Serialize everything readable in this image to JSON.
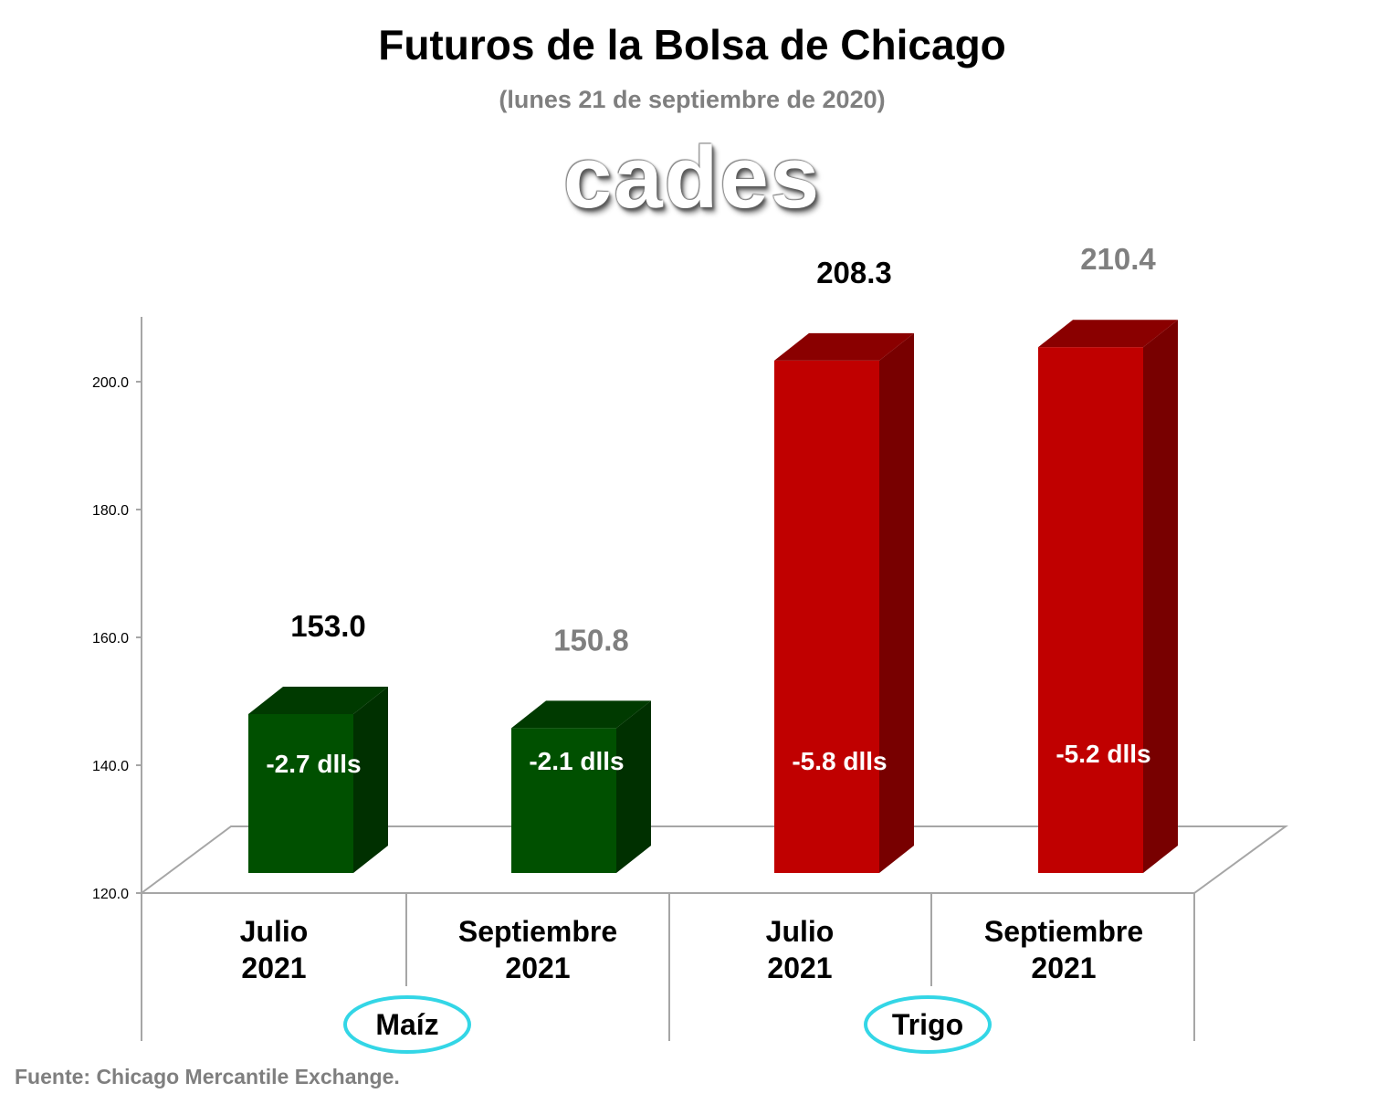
{
  "chart_data": {
    "type": "bar",
    "title": "Futuros de la Bolsa de Chicago",
    "subtitle": "(lunes 21 de septiembre de 2020)",
    "watermark": "cades",
    "source": "Fuente: Chicago Mercantile Exchange.",
    "ylim": [
      120,
      210
    ],
    "yticks": [
      "120.0",
      "140.0",
      "160.0",
      "180.0",
      "200.0"
    ],
    "grid": false,
    "bars": [
      {
        "line1": "Julio",
        "line2": "2021",
        "group": "Maíz",
        "value": 153.0,
        "value_label": "153.0",
        "change_label": "-2.7 dlls",
        "value_color": "#000000",
        "face": "#005000",
        "top": "#003a00",
        "side": "#003000"
      },
      {
        "line1": "Septiembre",
        "line2": "2021",
        "group": "Maíz",
        "value": 150.8,
        "value_label": "150.8",
        "change_label": "-2.1 dlls",
        "value_color": "#7f7f7f",
        "face": "#005000",
        "top": "#003a00",
        "side": "#003000"
      },
      {
        "line1": "Julio",
        "line2": "2021",
        "group": "Trigo",
        "value": 208.3,
        "value_label": "208.3",
        "change_label": "-5.8 dlls",
        "value_color": "#000000",
        "face": "#c00000",
        "top": "#8a0000",
        "side": "#780000"
      },
      {
        "line1": "Septiembre",
        "line2": "2021",
        "group": "Trigo",
        "value": 210.4,
        "value_label": "210.4",
        "change_label": "-5.2 dlls",
        "value_color": "#7f7f7f",
        "face": "#c00000",
        "top": "#8a0000",
        "side": "#780000"
      }
    ],
    "groups": [
      "Maíz",
      "Trigo"
    ],
    "group_ellipse_color": "#33d6e6"
  }
}
